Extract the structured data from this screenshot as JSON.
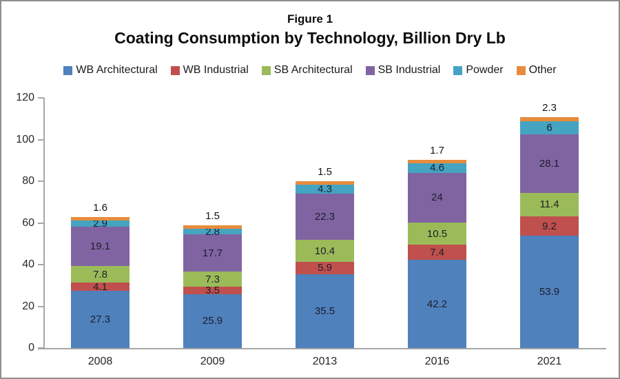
{
  "figure": {
    "label": "Figure 1",
    "title": "Coating Consumption by Technology, Billion Dry Lb"
  },
  "chart_data": {
    "type": "bar",
    "stacked": true,
    "categories": [
      "2008",
      "2009",
      "2013",
      "2016",
      "2021"
    ],
    "series": [
      {
        "name": "WB Architectural",
        "color": "#4f81bd",
        "values": [
          27.3,
          25.9,
          35.5,
          42.2,
          53.9
        ]
      },
      {
        "name": "WB Industrial",
        "color": "#c0504d",
        "values": [
          4.1,
          3.5,
          5.9,
          7.4,
          9.2
        ]
      },
      {
        "name": "SB Architectural",
        "color": "#9bbb59",
        "values": [
          7.8,
          7.3,
          10.4,
          10.5,
          11.4
        ]
      },
      {
        "name": "SB Industrial",
        "color": "#8064a2",
        "values": [
          19.1,
          17.7,
          22.3,
          24,
          28.1
        ]
      },
      {
        "name": "Powder",
        "color": "#44a4c2",
        "values": [
          2.9,
          2.8,
          4.3,
          4.6,
          6
        ]
      },
      {
        "name": "Other",
        "color": "#e68c3d",
        "values": [
          1.6,
          1.5,
          1.5,
          1.7,
          2.3
        ]
      }
    ],
    "value_labels": true,
    "other_labels_above_bar": true,
    "ylim": [
      0,
      120
    ],
    "yticks": [
      0,
      20,
      40,
      60,
      80,
      100,
      120
    ],
    "xlabel": "",
    "ylabel": "",
    "legend_position": "top",
    "grid": false
  }
}
